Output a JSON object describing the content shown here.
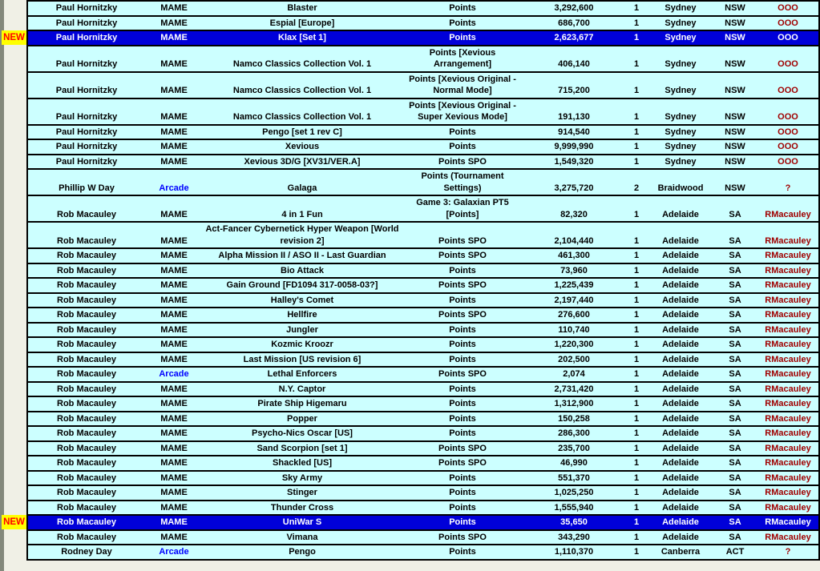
{
  "labels": {
    "new_badge": "NEW"
  },
  "colors": {
    "row_bg": "#CCFFFF",
    "highlight_row_bg": "#0000D9",
    "highlight_text": "#FFFFFF",
    "text": "#000000",
    "platform_arcade": "#0000FF",
    "verified_by": "#A00000",
    "new_badge_bg": "#FFFF00",
    "new_badge_text": "#FF0000",
    "gutter_bg": "#F0F0E6",
    "left_strip": "#83887B",
    "border": "#000000"
  },
  "table": {
    "rows": [
      {
        "name": "Paul Hornitzky",
        "platform": "MAME",
        "game": "Blaster",
        "score_type": "Points",
        "score": "3,292,600",
        "rank": "1",
        "city": "Sydney",
        "state": "NSW",
        "verified_by": "OOO",
        "is_new": false
      },
      {
        "name": "Paul Hornitzky",
        "platform": "MAME",
        "game": "Espial [Europe]",
        "score_type": "Points",
        "score": "686,700",
        "rank": "1",
        "city": "Sydney",
        "state": "NSW",
        "verified_by": "OOO",
        "is_new": false
      },
      {
        "name": "Paul Hornitzky",
        "platform": "MAME",
        "game": "Klax [Set 1]",
        "score_type": "Points",
        "score": "2,623,677",
        "rank": "1",
        "city": "Sydney",
        "state": "NSW",
        "verified_by": "OOO",
        "is_new": true
      },
      {
        "name": "Paul Hornitzky",
        "platform": "MAME",
        "game": "Namco Classics Collection Vol. 1",
        "score_type": "Points [Xevious Arrangement]",
        "score": "406,140",
        "rank": "1",
        "city": "Sydney",
        "state": "NSW",
        "verified_by": "OOO",
        "is_new": false
      },
      {
        "name": "Paul Hornitzky",
        "platform": "MAME",
        "game": "Namco Classics Collection Vol. 1",
        "score_type": "Points [Xevious Original - Normal Mode]",
        "score": "715,200",
        "rank": "1",
        "city": "Sydney",
        "state": "NSW",
        "verified_by": "OOO",
        "is_new": false
      },
      {
        "name": "Paul Hornitzky",
        "platform": "MAME",
        "game": "Namco Classics Collection Vol. 1",
        "score_type": "Points [Xevious Original - Super Xevious Mode]",
        "score": "191,130",
        "rank": "1",
        "city": "Sydney",
        "state": "NSW",
        "verified_by": "OOO",
        "is_new": false
      },
      {
        "name": "Paul Hornitzky",
        "platform": "MAME",
        "game": "Pengo [set 1 rev C]",
        "score_type": "Points",
        "score": "914,540",
        "rank": "1",
        "city": "Sydney",
        "state": "NSW",
        "verified_by": "OOO",
        "is_new": false
      },
      {
        "name": "Paul Hornitzky",
        "platform": "MAME",
        "game": "Xevious",
        "score_type": "Points",
        "score": "9,999,990",
        "rank": "1",
        "city": "Sydney",
        "state": "NSW",
        "verified_by": "OOO",
        "is_new": false
      },
      {
        "name": "Paul Hornitzky",
        "platform": "MAME",
        "game": "Xevious 3D/G [XV31/VER.A]",
        "score_type": "Points SPO",
        "score": "1,549,320",
        "rank": "1",
        "city": "Sydney",
        "state": "NSW",
        "verified_by": "OOO",
        "is_new": false
      },
      {
        "name": "Phillip W Day",
        "platform": "Arcade",
        "game": "Galaga",
        "score_type": "Points (Tournament Settings)",
        "score": "3,275,720",
        "rank": "2",
        "city": "Braidwood",
        "state": "NSW",
        "verified_by": "?",
        "is_new": false
      },
      {
        "name": "Rob Macauley",
        "platform": "MAME",
        "game": "4 in 1 Fun",
        "score_type": "Game 3: Galaxian PT5 [Points]",
        "score": "82,320",
        "rank": "1",
        "city": "Adelaide",
        "state": "SA",
        "verified_by": "RMacauley",
        "is_new": false
      },
      {
        "name": "Rob Macauley",
        "platform": "MAME",
        "game": "Act-Fancer Cybernetick Hyper Weapon [World revision 2]",
        "score_type": "Points SPO",
        "score": "2,104,440",
        "rank": "1",
        "city": "Adelaide",
        "state": "SA",
        "verified_by": "RMacauley",
        "is_new": false
      },
      {
        "name": "Rob Macauley",
        "platform": "MAME",
        "game": "Alpha Mission II / ASO II - Last Guardian",
        "score_type": "Points SPO",
        "score": "461,300",
        "rank": "1",
        "city": "Adelaide",
        "state": "SA",
        "verified_by": "RMacauley",
        "is_new": false
      },
      {
        "name": "Rob Macauley",
        "platform": "MAME",
        "game": "Bio Attack",
        "score_type": "Points",
        "score": "73,960",
        "rank": "1",
        "city": "Adelaide",
        "state": "SA",
        "verified_by": "RMacauley",
        "is_new": false
      },
      {
        "name": "Rob Macauley",
        "platform": "MAME",
        "game": "Gain Ground [FD1094 317-0058-03?]",
        "score_type": "Points SPO",
        "score": "1,225,439",
        "rank": "1",
        "city": "Adelaide",
        "state": "SA",
        "verified_by": "RMacauley",
        "is_new": false
      },
      {
        "name": "Rob Macauley",
        "platform": "MAME",
        "game": "Halley's Comet",
        "score_type": "Points",
        "score": "2,197,440",
        "rank": "1",
        "city": "Adelaide",
        "state": "SA",
        "verified_by": "RMacauley",
        "is_new": false
      },
      {
        "name": "Rob Macauley",
        "platform": "MAME",
        "game": "Hellfire",
        "score_type": "Points SPO",
        "score": "276,600",
        "rank": "1",
        "city": "Adelaide",
        "state": "SA",
        "verified_by": "RMacauley",
        "is_new": false
      },
      {
        "name": "Rob Macauley",
        "platform": "MAME",
        "game": "Jungler",
        "score_type": "Points",
        "score": "110,740",
        "rank": "1",
        "city": "Adelaide",
        "state": "SA",
        "verified_by": "RMacauley",
        "is_new": false
      },
      {
        "name": "Rob Macauley",
        "platform": "MAME",
        "game": "Kozmic Kroozr",
        "score_type": "Points",
        "score": "1,220,300",
        "rank": "1",
        "city": "Adelaide",
        "state": "SA",
        "verified_by": "RMacauley",
        "is_new": false
      },
      {
        "name": "Rob Macauley",
        "platform": "MAME",
        "game": "Last Mission [US revision 6]",
        "score_type": "Points",
        "score": "202,500",
        "rank": "1",
        "city": "Adelaide",
        "state": "SA",
        "verified_by": "RMacauley",
        "is_new": false
      },
      {
        "name": "Rob Macauley",
        "platform": "Arcade",
        "game": "Lethal Enforcers",
        "score_type": "Points SPO",
        "score": "2,074",
        "rank": "1",
        "city": "Adelaide",
        "state": "SA",
        "verified_by": "RMacauley",
        "is_new": false
      },
      {
        "name": "Rob Macauley",
        "platform": "MAME",
        "game": "N.Y. Captor",
        "score_type": "Points",
        "score": "2,731,420",
        "rank": "1",
        "city": "Adelaide",
        "state": "SA",
        "verified_by": "RMacauley",
        "is_new": false
      },
      {
        "name": "Rob Macauley",
        "platform": "MAME",
        "game": "Pirate Ship Higemaru",
        "score_type": "Points",
        "score": "1,312,900",
        "rank": "1",
        "city": "Adelaide",
        "state": "SA",
        "verified_by": "RMacauley",
        "is_new": false
      },
      {
        "name": "Rob Macauley",
        "platform": "MAME",
        "game": "Popper",
        "score_type": "Points",
        "score": "150,258",
        "rank": "1",
        "city": "Adelaide",
        "state": "SA",
        "verified_by": "RMacauley",
        "is_new": false
      },
      {
        "name": "Rob Macauley",
        "platform": "MAME",
        "game": "Psycho-Nics Oscar [US]",
        "score_type": "Points",
        "score": "286,300",
        "rank": "1",
        "city": "Adelaide",
        "state": "SA",
        "verified_by": "RMacauley",
        "is_new": false
      },
      {
        "name": "Rob Macauley",
        "platform": "MAME",
        "game": "Sand Scorpion [set 1]",
        "score_type": "Points SPO",
        "score": "235,700",
        "rank": "1",
        "city": "Adelaide",
        "state": "SA",
        "verified_by": "RMacauley",
        "is_new": false
      },
      {
        "name": "Rob Macauley",
        "platform": "MAME",
        "game": "Shackled [US]",
        "score_type": "Points SPO",
        "score": "46,990",
        "rank": "1",
        "city": "Adelaide",
        "state": "SA",
        "verified_by": "RMacauley",
        "is_new": false
      },
      {
        "name": "Rob Macauley",
        "platform": "MAME",
        "game": "Sky Army",
        "score_type": "Points",
        "score": "551,370",
        "rank": "1",
        "city": "Adelaide",
        "state": "SA",
        "verified_by": "RMacauley",
        "is_new": false
      },
      {
        "name": "Rob Macauley",
        "platform": "MAME",
        "game": "Stinger",
        "score_type": "Points",
        "score": "1,025,250",
        "rank": "1",
        "city": "Adelaide",
        "state": "SA",
        "verified_by": "RMacauley",
        "is_new": false
      },
      {
        "name": "Rob Macauley",
        "platform": "MAME",
        "game": "Thunder Cross",
        "score_type": "Points",
        "score": "1,555,940",
        "rank": "1",
        "city": "Adelaide",
        "state": "SA",
        "verified_by": "RMacauley",
        "is_new": false
      },
      {
        "name": "Rob Macauley",
        "platform": "MAME",
        "game": "UniWar S",
        "score_type": "Points",
        "score": "35,650",
        "rank": "1",
        "city": "Adelaide",
        "state": "SA",
        "verified_by": "RMacauley",
        "is_new": true
      },
      {
        "name": "Rob Macauley",
        "platform": "MAME",
        "game": "Vimana",
        "score_type": "Points SPO",
        "score": "343,290",
        "rank": "1",
        "city": "Adelaide",
        "state": "SA",
        "verified_by": "RMacauley",
        "is_new": false
      },
      {
        "name": "Rodney Day",
        "platform": "Arcade",
        "game": "Pengo",
        "score_type": "Points",
        "score": "1,110,370",
        "rank": "1",
        "city": "Canberra",
        "state": "ACT",
        "verified_by": "?",
        "is_new": false
      }
    ]
  }
}
